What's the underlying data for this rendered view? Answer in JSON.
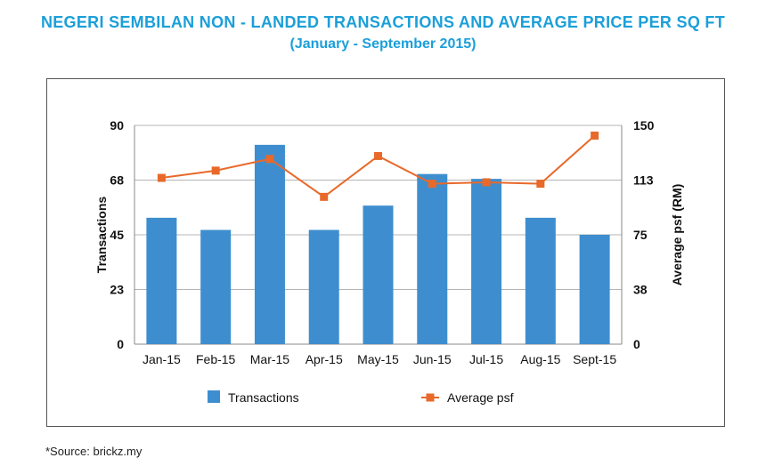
{
  "page": {
    "title": "NEGERI SEMBILAN NON - LANDED TRANSACTIONS AND AVERAGE PRICE PER SQ FT",
    "subtitle": "(January - September 2015)",
    "source": "*Source: brickz.my"
  },
  "chart_data": {
    "type": "bar",
    "categories": [
      "Jan-15",
      "Feb-15",
      "Mar-15",
      "Apr-15",
      "May-15",
      "Jun-15",
      "Jul-15",
      "Aug-15",
      "Sept-15"
    ],
    "series": [
      {
        "name": "Transactions",
        "type": "bar",
        "axis": "left",
        "color": "#3e8ecf",
        "values": [
          52,
          47,
          82,
          47,
          57,
          70,
          68,
          52,
          45
        ]
      },
      {
        "name": "Average psf",
        "type": "line",
        "axis": "right",
        "color": "#e8692a",
        "values": [
          114,
          119,
          127,
          101,
          129,
          110,
          111,
          110,
          143
        ]
      }
    ],
    "ylabel": "Transactions",
    "y2label": "Average psf (RM)",
    "ylim": [
      0,
      90
    ],
    "y2lim": [
      0,
      150
    ],
    "yticks": [
      "0",
      "23",
      "45",
      "68",
      "90"
    ],
    "y2ticks": [
      "0",
      "38",
      "75",
      "113",
      "150"
    ],
    "grid": true,
    "legend_position": "bottom",
    "legend": [
      "Transactions",
      "Average psf"
    ]
  }
}
